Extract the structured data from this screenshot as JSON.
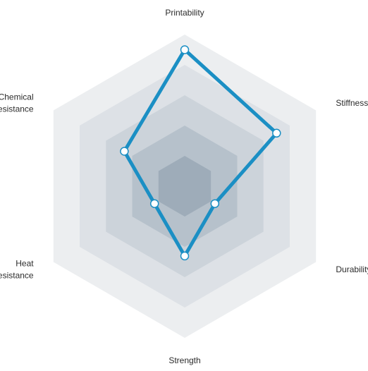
{
  "chart_data": {
    "type": "radar",
    "axes": [
      {
        "key": "printability",
        "label_lines": [
          "Printability"
        ]
      },
      {
        "key": "stiffness",
        "label_lines": [
          "Stiffness"
        ]
      },
      {
        "key": "durability",
        "label_lines": [
          "Durability"
        ]
      },
      {
        "key": "strength",
        "label_lines": [
          "Strength"
        ]
      },
      {
        "key": "heat-resistance",
        "label_lines": [
          "Heat",
          "Resistance"
        ]
      },
      {
        "key": "chemical-resistance",
        "label_lines": [
          "Chemical",
          "resistance"
        ]
      }
    ],
    "levels": 5,
    "range": [
      0,
      5
    ],
    "series": [
      {
        "values": [
          4.5,
          3.5,
          1.15,
          2.3,
          1.15,
          2.3
        ]
      }
    ],
    "colors": {
      "line": "#1b8fc4",
      "marker_fill": "#ffffff",
      "level_fills": [
        "#eceef0",
        "#dde1e6",
        "#ccd3da",
        "#b6c1cb",
        "#9eacb9"
      ]
    }
  }
}
